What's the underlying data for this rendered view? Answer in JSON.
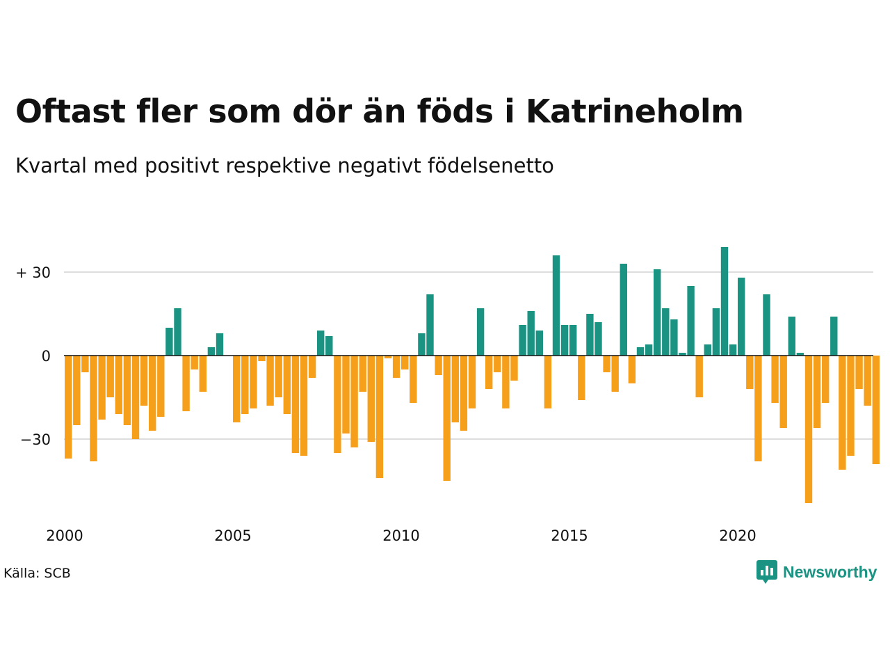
{
  "title": "Oftast fler som dör än föds i Katrineholm",
  "subtitle": "Kvartal med positivt respektive negativt födelsenetto",
  "source": "Källa: SCB",
  "brand": {
    "name": "Newsworthy",
    "icon": "newsworthy-logo-icon",
    "color": "#1a9383"
  },
  "chart_data": {
    "type": "bar",
    "title": "Oftast fler som dör än föds i Katrineholm",
    "subtitle": "Kvartal med positivt respektive negativt födelsenetto",
    "xlabel": "",
    "ylabel": "",
    "x_start": 2000,
    "period": "quarter",
    "categories": [
      "2000 Q1",
      "2000 Q2",
      "2000 Q3",
      "2000 Q4",
      "2001 Q1",
      "2001 Q2",
      "2001 Q3",
      "2001 Q4",
      "2002 Q1",
      "2002 Q2",
      "2002 Q3",
      "2002 Q4",
      "2003 Q1",
      "2003 Q2",
      "2003 Q3",
      "2003 Q4",
      "2004 Q1",
      "2004 Q2",
      "2004 Q3",
      "2004 Q4",
      "2005 Q1",
      "2005 Q2",
      "2005 Q3",
      "2005 Q4",
      "2006 Q1",
      "2006 Q2",
      "2006 Q3",
      "2006 Q4",
      "2007 Q1",
      "2007 Q2",
      "2007 Q3",
      "2007 Q4",
      "2008 Q1",
      "2008 Q2",
      "2008 Q3",
      "2008 Q4",
      "2009 Q1",
      "2009 Q2",
      "2009 Q3",
      "2009 Q4",
      "2010 Q1",
      "2010 Q2",
      "2010 Q3",
      "2010 Q4",
      "2011 Q1",
      "2011 Q2",
      "2011 Q3",
      "2011 Q4",
      "2012 Q1",
      "2012 Q2",
      "2012 Q3",
      "2012 Q4",
      "2013 Q1",
      "2013 Q2",
      "2013 Q3",
      "2013 Q4",
      "2014 Q1",
      "2014 Q2",
      "2014 Q3",
      "2014 Q4",
      "2015 Q1",
      "2015 Q2",
      "2015 Q3",
      "2015 Q4",
      "2016 Q1",
      "2016 Q2",
      "2016 Q3",
      "2016 Q4",
      "2017 Q1",
      "2017 Q2",
      "2017 Q3",
      "2017 Q4",
      "2018 Q1",
      "2018 Q2",
      "2018 Q3",
      "2018 Q4",
      "2019 Q1",
      "2019 Q2",
      "2019 Q3",
      "2019 Q4",
      "2020 Q1",
      "2020 Q2",
      "2020 Q3",
      "2020 Q4",
      "2021 Q1",
      "2021 Q2",
      "2021 Q3",
      "2021 Q4",
      "2022 Q1",
      "2022 Q2",
      "2022 Q3",
      "2022 Q4",
      "2023 Q1",
      "2023 Q2",
      "2023 Q3",
      "2023 Q4",
      "2024 Q1"
    ],
    "values": [
      -37,
      -25,
      -6,
      -38,
      -23,
      -15,
      -21,
      -25,
      -30,
      -18,
      -27,
      -22,
      10,
      17,
      -20,
      -5,
      -13,
      3,
      8,
      0,
      -24,
      -21,
      -19,
      -2,
      -18,
      -15,
      -21,
      -35,
      -36,
      -8,
      9,
      7,
      -35,
      -28,
      -33,
      -13,
      -31,
      -44,
      -1,
      -8,
      -5,
      -17,
      8,
      22,
      -7,
      -45,
      -24,
      -27,
      -19,
      17,
      -12,
      -6,
      -19,
      -9,
      11,
      16,
      9,
      -19,
      36,
      11,
      11,
      -16,
      15,
      12,
      -6,
      -13,
      33,
      -10,
      3,
      4,
      31,
      17,
      13,
      1,
      25,
      -15,
      4,
      17,
      39,
      4,
      28,
      -12,
      -38,
      22,
      -17,
      -26,
      14,
      1,
      -53,
      -26,
      -17,
      14,
      -41,
      -36,
      -12,
      -18,
      -39
    ],
    "ylim": [
      -55,
      42
    ],
    "y_ticks": [
      30,
      0,
      -30
    ],
    "y_tick_labels": [
      "+ 30",
      "0",
      "−30"
    ],
    "x_ticks": [
      "2000",
      "2005",
      "2010",
      "2015",
      "2020"
    ],
    "grid": true,
    "legend": "none",
    "colors": {
      "positive": "#1a9383",
      "negative": "#f59f1b",
      "grid": "#dddddd",
      "zero_line": "#111111"
    }
  }
}
